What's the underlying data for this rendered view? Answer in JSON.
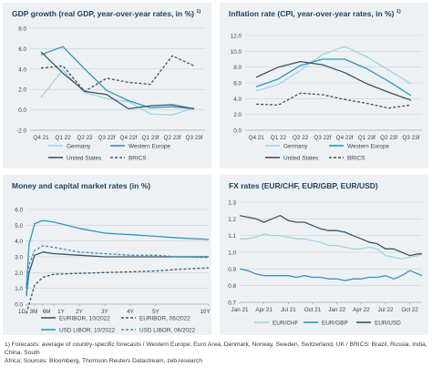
{
  "footnote": {
    "line1": "1) Forecasts: average of country-specific forecasts / Western Europe: Euro Area, Denmark, Norway, Sweden, Switzerland, UK / BRICS: Brazil, Russia, India, China, South",
    "line2": "Africa; Sources: Bloomberg, Thomson Reuters Datastream, zeb.research"
  },
  "colors": {
    "germany": "#9fd3e6",
    "western_europe": "#2f95c1",
    "united_states": "#3a5468",
    "brics": "#3a5468",
    "euribor_10": "#3a5468",
    "euribor_06": "#3a5468",
    "usd_10": "#2f95c1",
    "usd_06": "#2f95c1",
    "eurchf": "#9fd3e6",
    "eurgbp": "#2f95c1",
    "eurusd": "#3a5468",
    "grid": "#c9d1d7"
  },
  "chart_data": [
    {
      "id": "gdp",
      "type": "line",
      "title": "GDP growth (real GDP, year-over-year rates, in %)",
      "title_note": "1)",
      "categories": [
        "Q4 21",
        "Q1 22",
        "Q2 22",
        "Q3 22f",
        "Q4 22f",
        "Q1 23f",
        "Q2 23f",
        "Q3 23f"
      ],
      "ylim": [
        -2.0,
        8.0
      ],
      "yticks": [
        -2.0,
        0.0,
        2.0,
        4.0,
        6.0,
        8.0
      ],
      "series": [
        {
          "name": "Germany",
          "color_key": "germany",
          "dash": false,
          "values": [
            1.2,
            3.9,
            1.7,
            1.1,
            0.8,
            -0.4,
            -0.5,
            0.2
          ]
        },
        {
          "name": "Western Europe",
          "color_key": "western_europe",
          "dash": false,
          "values": [
            5.4,
            6.2,
            4.0,
            1.9,
            0.9,
            0.2,
            0.3,
            0.1
          ]
        },
        {
          "name": "United States",
          "color_key": "united_states",
          "dash": false,
          "values": [
            5.7,
            3.6,
            1.8,
            1.5,
            0.1,
            0.4,
            0.5,
            0.1
          ]
        },
        {
          "name": "BRICS",
          "color_key": "brics",
          "dash": true,
          "values": [
            4.1,
            4.3,
            1.8,
            3.1,
            2.7,
            2.5,
            5.3,
            4.3
          ]
        }
      ]
    },
    {
      "id": "inflation",
      "type": "line",
      "title": "Inflation rate (CPI, year-over-year rates, in %)",
      "title_note": "1)",
      "categories": [
        "Q4 21",
        "Q1 22",
        "Q2 22",
        "Q3 22f",
        "Q4 22f",
        "Q1 23f",
        "Q2 23f",
        "Q3 23f"
      ],
      "ylim": [
        0.0,
        12.0
      ],
      "yticks": [
        0.0,
        2.0,
        4.0,
        6.0,
        8.0,
        10.0,
        12.0
      ],
      "series": [
        {
          "name": "Germany",
          "color_key": "germany",
          "dash": false,
          "values": [
            5.0,
            5.8,
            7.6,
            9.6,
            10.6,
            9.3,
            7.6,
            5.9
          ]
        },
        {
          "name": "Western Europe",
          "color_key": "western_europe",
          "dash": false,
          "values": [
            5.5,
            6.5,
            8.2,
            9.0,
            9.0,
            7.8,
            6.2,
            4.4
          ]
        },
        {
          "name": "United States",
          "color_key": "united_states",
          "dash": false,
          "values": [
            6.7,
            8.0,
            8.7,
            8.3,
            7.3,
            5.9,
            4.8,
            3.8
          ]
        },
        {
          "name": "BRICS",
          "color_key": "brics",
          "dash": true,
          "values": [
            3.3,
            3.2,
            4.7,
            4.5,
            3.9,
            3.4,
            2.8,
            3.2
          ]
        }
      ]
    },
    {
      "id": "rates",
      "type": "line",
      "title": "Money and capital market rates (in %)",
      "x_tick_labels": [
        "1D",
        "3M",
        "6M",
        "1Y",
        "2Y",
        "3Y",
        "4Y",
        "5Y",
        "10Y"
      ],
      "x_ticks": [
        0,
        0.25,
        0.5,
        1,
        2,
        3,
        4,
        5,
        10
      ],
      "ylim": [
        0.0,
        6.0
      ],
      "yticks": [
        0.0,
        1.0,
        2.0,
        3.0,
        4.0,
        5.0,
        6.0
      ],
      "series": [
        {
          "name": "EURIBOR, 10/2022",
          "color_key": "euribor_10",
          "dash": false,
          "x": [
            0,
            0.08,
            0.25,
            0.5,
            1,
            2,
            3,
            4,
            5,
            7,
            10
          ],
          "values": [
            0.6,
            2.0,
            3.1,
            3.3,
            3.2,
            3.1,
            3.0,
            3.0,
            3.0,
            3.0,
            3.0
          ]
        },
        {
          "name": "EURIBOR, 06/2022",
          "color_key": "euribor_06",
          "dash": true,
          "x": [
            0,
            0.08,
            0.25,
            0.5,
            1,
            2,
            3,
            4,
            5,
            7,
            10
          ],
          "values": [
            -0.6,
            0.0,
            1.2,
            1.7,
            1.9,
            1.95,
            2.0,
            2.05,
            2.1,
            2.2,
            2.3
          ]
        },
        {
          "name": "USD LIBOR, 10/2022",
          "color_key": "usd_10",
          "dash": false,
          "x": [
            0,
            0.08,
            0.25,
            0.5,
            1,
            2,
            3,
            4,
            5,
            7,
            10
          ],
          "values": [
            1.0,
            3.8,
            5.1,
            5.3,
            5.2,
            4.8,
            4.5,
            4.4,
            4.3,
            4.2,
            4.1
          ]
        },
        {
          "name": "USD LIBOR, 06/2022",
          "color_key": "usd_06",
          "dash": true,
          "x": [
            0,
            0.08,
            0.25,
            0.5,
            1,
            2,
            3,
            4,
            5,
            7,
            10
          ],
          "values": [
            0.5,
            2.5,
            3.4,
            3.7,
            3.6,
            3.3,
            3.2,
            3.1,
            3.1,
            3.0,
            2.95
          ]
        }
      ]
    },
    {
      "id": "fx",
      "type": "line",
      "title": "FX rates (EUR/CHF, EUR/GBP, EUR/USD)",
      "x_tick_labels": [
        "Jan 21",
        "Apr 21",
        "Jul 21",
        "Oct 21",
        "Jan 22",
        "Apr 22",
        "Jul 22",
        "Oct 22"
      ],
      "x_ticks": [
        0,
        3,
        6,
        9,
        12,
        15,
        18,
        21
      ],
      "x_range": [
        0,
        22.5
      ],
      "ylim": [
        0.7,
        1.3
      ],
      "yticks": [
        0.7,
        0.8,
        0.9,
        1.0,
        1.1,
        1.2,
        1.3
      ],
      "series": [
        {
          "name": "EUR/CHF",
          "color_key": "eurchf",
          "dash": false,
          "x": [
            0,
            1,
            2,
            3,
            4,
            5,
            6,
            7,
            8,
            9,
            10,
            11,
            12,
            13,
            14,
            15,
            16,
            17,
            18,
            19,
            20,
            21,
            22,
            22.5
          ],
          "values": [
            1.08,
            1.08,
            1.09,
            1.11,
            1.1,
            1.1,
            1.09,
            1.08,
            1.08,
            1.07,
            1.06,
            1.04,
            1.04,
            1.03,
            1.02,
            1.02,
            1.03,
            1.02,
            0.98,
            0.97,
            0.96,
            0.97,
            0.98,
            0.99
          ]
        },
        {
          "name": "EUR/GBP",
          "color_key": "eurgbp",
          "dash": false,
          "x": [
            0,
            1,
            2,
            3,
            4,
            5,
            6,
            7,
            8,
            9,
            10,
            11,
            12,
            13,
            14,
            15,
            16,
            17,
            18,
            19,
            20,
            21,
            22,
            22.5
          ],
          "values": [
            0.9,
            0.89,
            0.87,
            0.86,
            0.86,
            0.86,
            0.86,
            0.85,
            0.86,
            0.85,
            0.85,
            0.84,
            0.84,
            0.83,
            0.84,
            0.84,
            0.85,
            0.85,
            0.86,
            0.84,
            0.86,
            0.89,
            0.87,
            0.86
          ]
        },
        {
          "name": "EUR/USD",
          "color_key": "eurusd",
          "dash": false,
          "x": [
            0,
            1,
            2,
            3,
            4,
            5,
            6,
            7,
            8,
            9,
            10,
            11,
            12,
            13,
            14,
            15,
            16,
            17,
            18,
            19,
            20,
            21,
            22,
            22.5
          ],
          "values": [
            1.22,
            1.21,
            1.2,
            1.18,
            1.2,
            1.22,
            1.19,
            1.18,
            1.18,
            1.16,
            1.14,
            1.13,
            1.13,
            1.12,
            1.1,
            1.08,
            1.06,
            1.05,
            1.02,
            1.02,
            1.0,
            0.98,
            0.99,
            0.99
          ]
        }
      ]
    }
  ]
}
